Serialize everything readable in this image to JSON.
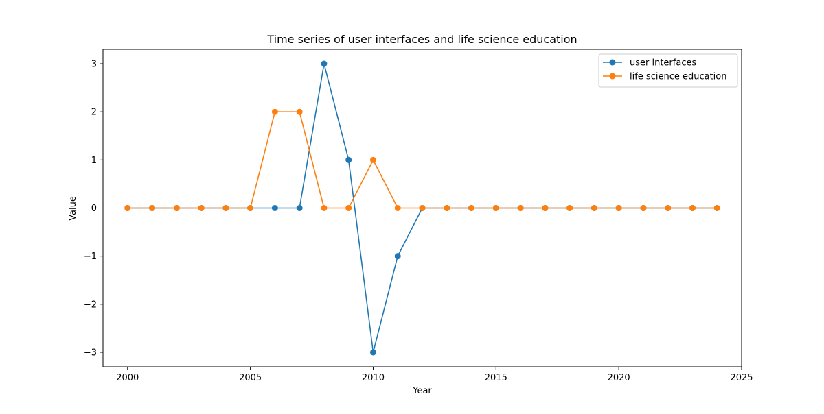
{
  "chart_data": {
    "type": "line",
    "title": "Time series of user interfaces and life science education",
    "xlabel": "Year",
    "ylabel": "Value",
    "xlim": [
      1999,
      2025
    ],
    "ylim": [
      -3.3,
      3.3
    ],
    "xticks": [
      2000,
      2005,
      2010,
      2015,
      2020,
      2025
    ],
    "yticks": [
      3,
      2,
      1,
      0,
      -1,
      -2,
      -3
    ],
    "ytick_labels": [
      "3",
      "2",
      "1",
      "0",
      "−1",
      "−2",
      "−3"
    ],
    "grid": false,
    "legend_position": "top-right",
    "x": [
      2000,
      2001,
      2002,
      2003,
      2004,
      2005,
      2006,
      2007,
      2008,
      2009,
      2010,
      2011,
      2012,
      2013,
      2014,
      2015,
      2016,
      2017,
      2018,
      2019,
      2020,
      2021,
      2022,
      2023,
      2024
    ],
    "series": [
      {
        "name": "user interfaces",
        "color": "#1f77b4",
        "values": [
          0,
          0,
          0,
          0,
          0,
          0,
          0,
          0,
          3,
          1,
          -3,
          -1,
          0,
          0,
          0,
          0,
          0,
          0,
          0,
          0,
          0,
          0,
          0,
          0,
          0
        ]
      },
      {
        "name": "life science education",
        "color": "#ff7f0e",
        "values": [
          0,
          0,
          0,
          0,
          0,
          0,
          2,
          2,
          0,
          0,
          1,
          0,
          0,
          0,
          0,
          0,
          0,
          0,
          0,
          0,
          0,
          0,
          0,
          0,
          0
        ]
      }
    ]
  }
}
